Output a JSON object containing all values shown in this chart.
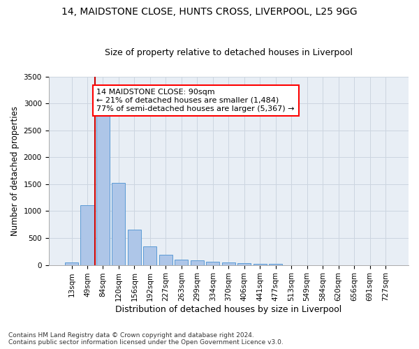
{
  "title1": "14, MAIDSTONE CLOSE, HUNTS CROSS, LIVERPOOL, L25 9GG",
  "title2": "Size of property relative to detached houses in Liverpool",
  "xlabel": "Distribution of detached houses by size in Liverpool",
  "ylabel": "Number of detached properties",
  "footer1": "Contains HM Land Registry data © Crown copyright and database right 2024.",
  "footer2": "Contains public sector information licensed under the Open Government Licence v3.0.",
  "annotation_line1": "14 MAIDSTONE CLOSE: 90sqm",
  "annotation_line2": "← 21% of detached houses are smaller (1,484)",
  "annotation_line3": "77% of semi-detached houses are larger (5,367) →",
  "bar_labels": [
    "13sqm",
    "49sqm",
    "84sqm",
    "120sqm",
    "156sqm",
    "192sqm",
    "227sqm",
    "263sqm",
    "299sqm",
    "334sqm",
    "370sqm",
    "406sqm",
    "441sqm",
    "477sqm",
    "513sqm",
    "549sqm",
    "584sqm",
    "620sqm",
    "656sqm",
    "691sqm",
    "727sqm"
  ],
  "bar_values": [
    50,
    1110,
    2940,
    1520,
    650,
    345,
    190,
    100,
    85,
    60,
    50,
    30,
    20,
    20,
    0,
    0,
    0,
    0,
    0,
    0,
    0
  ],
  "bar_color": "#aec6e8",
  "bar_edge_color": "#5b9bd5",
  "property_line_color": "#cc0000",
  "property_line_x": 1.5,
  "ylim": [
    0,
    3500
  ],
  "yticks": [
    0,
    500,
    1000,
    1500,
    2000,
    2500,
    3000,
    3500
  ],
  "grid_color": "#ccd5e0",
  "bg_color": "#e8eef5",
  "title1_fontsize": 10,
  "title2_fontsize": 9,
  "annotation_fontsize": 8,
  "xlabel_fontsize": 9,
  "ylabel_fontsize": 8.5,
  "footer_fontsize": 6.5,
  "tick_fontsize": 7.5
}
